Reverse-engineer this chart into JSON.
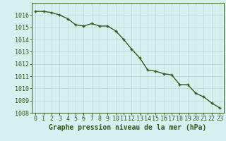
{
  "x": [
    0,
    1,
    2,
    3,
    4,
    5,
    6,
    7,
    8,
    9,
    10,
    11,
    12,
    13,
    14,
    15,
    16,
    17,
    18,
    19,
    20,
    21,
    22,
    23
  ],
  "y": [
    1016.3,
    1016.3,
    1016.2,
    1016.0,
    1015.7,
    1015.2,
    1015.1,
    1015.3,
    1015.1,
    1015.1,
    1014.7,
    1014.0,
    1013.2,
    1012.5,
    1011.5,
    1011.4,
    1011.2,
    1011.1,
    1010.3,
    1010.3,
    1009.6,
    1009.3,
    1008.8,
    1008.4
  ],
  "line_color": "#2d5a1b",
  "marker": "+",
  "marker_size": 3,
  "line_width": 1.0,
  "bg_color": "#d6f0f0",
  "grid_color_major": "#b8d8d8",
  "xlabel": "Graphe pression niveau de la mer (hPa)",
  "xlabel_color": "#2d5a1b",
  "xlabel_fontsize": 7,
  "tick_color": "#2d5a1b",
  "tick_fontsize": 6,
  "ylim": [
    1008,
    1017
  ],
  "xlim": [
    -0.5,
    23.5
  ],
  "yticks": [
    1008,
    1009,
    1010,
    1011,
    1012,
    1013,
    1014,
    1015,
    1016
  ],
  "xticks": [
    0,
    1,
    2,
    3,
    4,
    5,
    6,
    7,
    8,
    9,
    10,
    11,
    12,
    13,
    14,
    15,
    16,
    17,
    18,
    19,
    20,
    21,
    22,
    23
  ]
}
